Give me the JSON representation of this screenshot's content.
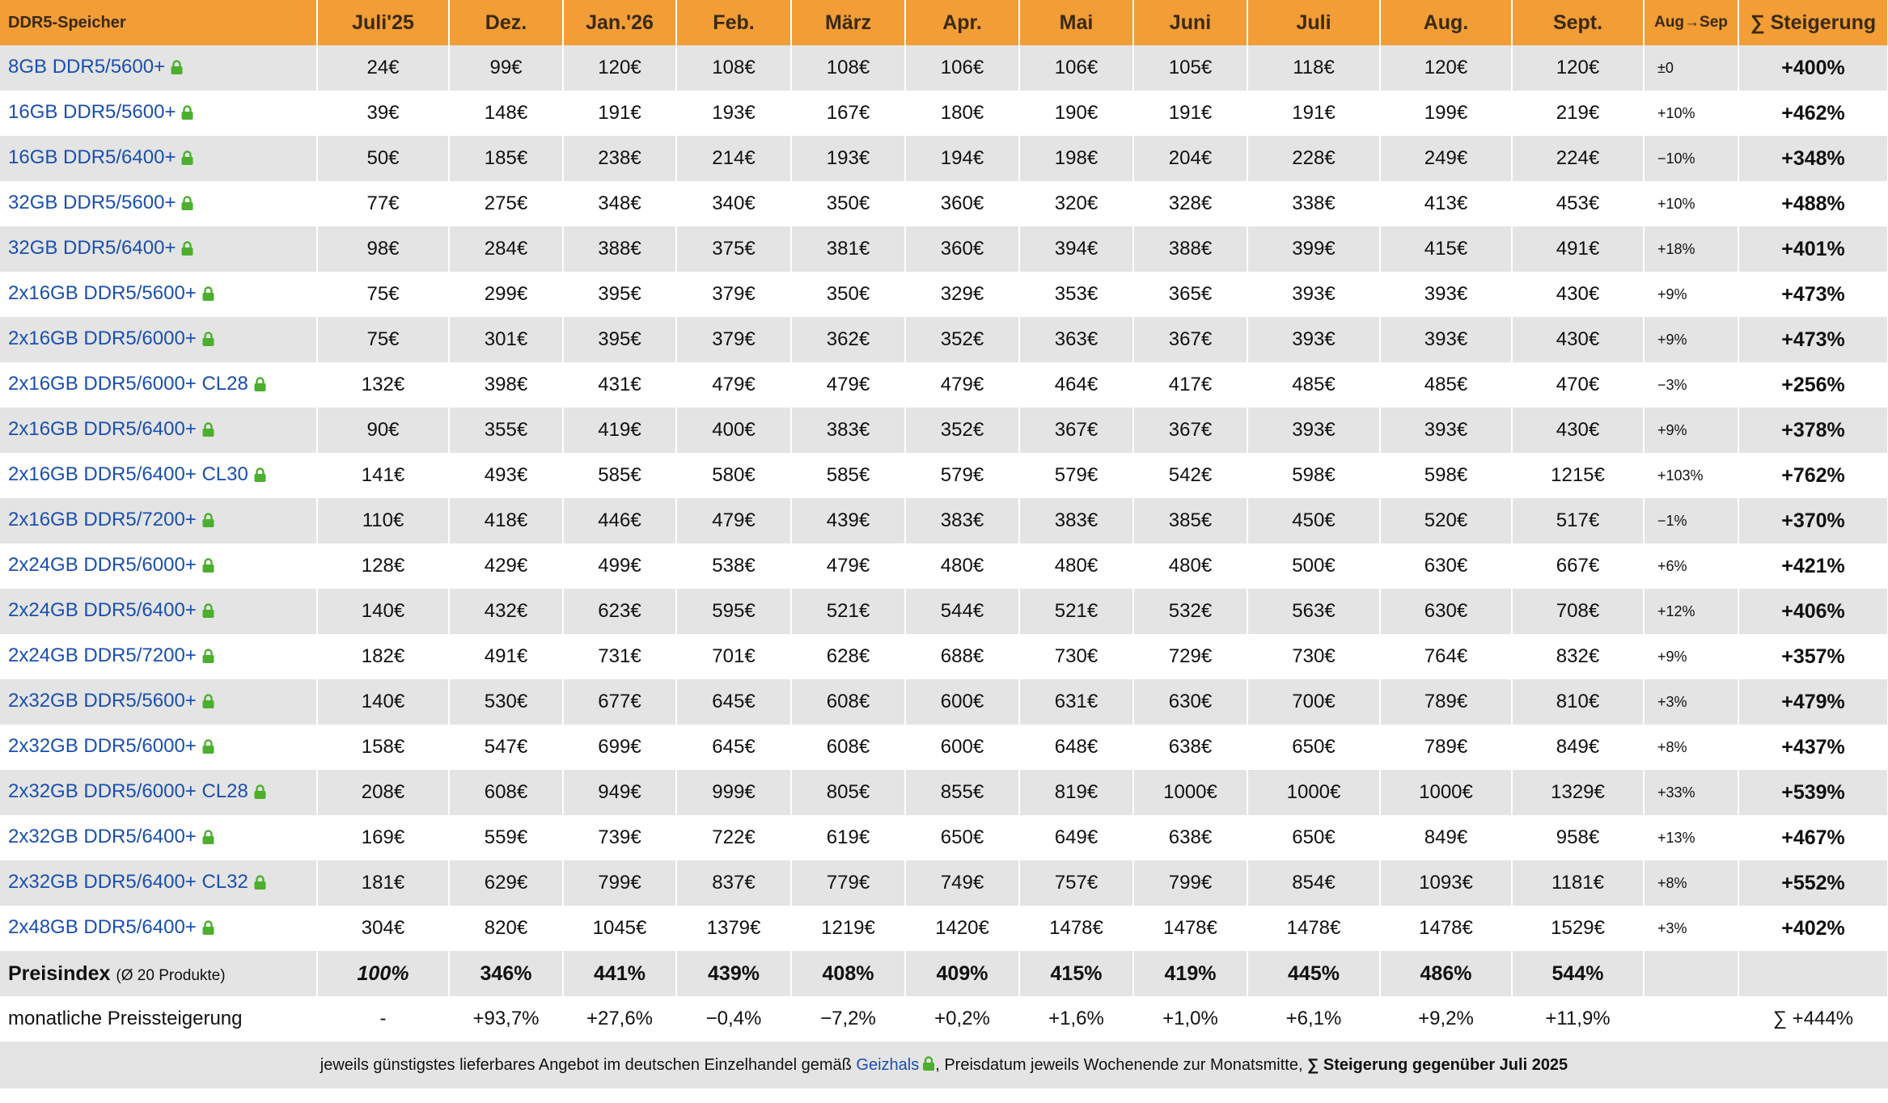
{
  "header": {
    "product": "DDR5-Speicher",
    "months": [
      "Juli'25",
      "Dez.",
      "Jan.'26",
      "Feb.",
      "März",
      "Apr.",
      "Mai",
      "Juni",
      "Juli",
      "Aug.",
      "Sept."
    ],
    "change": "Aug→Sep",
    "total": "∑ Steigerung"
  },
  "rows": [
    {
      "name": "8GB DDR5/5600+",
      "prices": [
        "24€",
        "99€",
        "120€",
        "108€",
        "108€",
        "106€",
        "106€",
        "105€",
        "118€",
        "120€",
        "120€"
      ],
      "change": "±0",
      "total": "+400%"
    },
    {
      "name": "16GB DDR5/5600+",
      "prices": [
        "39€",
        "148€",
        "191€",
        "193€",
        "167€",
        "180€",
        "190€",
        "191€",
        "191€",
        "199€",
        "219€"
      ],
      "change": "+10%",
      "total": "+462%"
    },
    {
      "name": "16GB DDR5/6400+",
      "prices": [
        "50€",
        "185€",
        "238€",
        "214€",
        "193€",
        "194€",
        "198€",
        "204€",
        "228€",
        "249€",
        "224€"
      ],
      "change": "−10%",
      "total": "+348%"
    },
    {
      "name": "32GB DDR5/5600+",
      "prices": [
        "77€",
        "275€",
        "348€",
        "340€",
        "350€",
        "360€",
        "320€",
        "328€",
        "338€",
        "413€",
        "453€"
      ],
      "change": "+10%",
      "total": "+488%"
    },
    {
      "name": "32GB DDR5/6400+",
      "prices": [
        "98€",
        "284€",
        "388€",
        "375€",
        "381€",
        "360€",
        "394€",
        "388€",
        "399€",
        "415€",
        "491€"
      ],
      "change": "+18%",
      "total": "+401%"
    },
    {
      "name": "2x16GB DDR5/5600+",
      "prices": [
        "75€",
        "299€",
        "395€",
        "379€",
        "350€",
        "329€",
        "353€",
        "365€",
        "393€",
        "393€",
        "430€"
      ],
      "change": "+9%",
      "total": "+473%"
    },
    {
      "name": "2x16GB DDR5/6000+",
      "prices": [
        "75€",
        "301€",
        "395€",
        "379€",
        "362€",
        "352€",
        "363€",
        "367€",
        "393€",
        "393€",
        "430€"
      ],
      "change": "+9%",
      "total": "+473%"
    },
    {
      "name": "2x16GB DDR5/6000+ CL28",
      "prices": [
        "132€",
        "398€",
        "431€",
        "479€",
        "479€",
        "479€",
        "464€",
        "417€",
        "485€",
        "485€",
        "470€"
      ],
      "change": "−3%",
      "total": "+256%"
    },
    {
      "name": "2x16GB DDR5/6400+",
      "prices": [
        "90€",
        "355€",
        "419€",
        "400€",
        "383€",
        "352€",
        "367€",
        "367€",
        "393€",
        "393€",
        "430€"
      ],
      "change": "+9%",
      "total": "+378%"
    },
    {
      "name": "2x16GB DDR5/6400+ CL30",
      "prices": [
        "141€",
        "493€",
        "585€",
        "580€",
        "585€",
        "579€",
        "579€",
        "542€",
        "598€",
        "598€",
        "1215€"
      ],
      "change": "+103%",
      "total": "+762%"
    },
    {
      "name": "2x16GB DDR5/7200+",
      "prices": [
        "110€",
        "418€",
        "446€",
        "479€",
        "439€",
        "383€",
        "383€",
        "385€",
        "450€",
        "520€",
        "517€"
      ],
      "change": "−1%",
      "total": "+370%"
    },
    {
      "name": "2x24GB DDR5/6000+",
      "prices": [
        "128€",
        "429€",
        "499€",
        "538€",
        "479€",
        "480€",
        "480€",
        "480€",
        "500€",
        "630€",
        "667€"
      ],
      "change": "+6%",
      "total": "+421%"
    },
    {
      "name": "2x24GB DDR5/6400+",
      "prices": [
        "140€",
        "432€",
        "623€",
        "595€",
        "521€",
        "544€",
        "521€",
        "532€",
        "563€",
        "630€",
        "708€"
      ],
      "change": "+12%",
      "total": "+406%"
    },
    {
      "name": "2x24GB DDR5/7200+",
      "prices": [
        "182€",
        "491€",
        "731€",
        "701€",
        "628€",
        "688€",
        "730€",
        "729€",
        "730€",
        "764€",
        "832€"
      ],
      "change": "+9%",
      "total": "+357%"
    },
    {
      "name": "2x32GB DDR5/5600+",
      "prices": [
        "140€",
        "530€",
        "677€",
        "645€",
        "608€",
        "600€",
        "631€",
        "630€",
        "700€",
        "789€",
        "810€"
      ],
      "change": "+3%",
      "total": "+479%"
    },
    {
      "name": "2x32GB DDR5/6000+",
      "prices": [
        "158€",
        "547€",
        "699€",
        "645€",
        "608€",
        "600€",
        "648€",
        "638€",
        "650€",
        "789€",
        "849€"
      ],
      "change": "+8%",
      "total": "+437%"
    },
    {
      "name": "2x32GB DDR5/6000+ CL28",
      "prices": [
        "208€",
        "608€",
        "949€",
        "999€",
        "805€",
        "855€",
        "819€",
        "1000€",
        "1000€",
        "1000€",
        "1329€"
      ],
      "change": "+33%",
      "total": "+539%"
    },
    {
      "name": "2x32GB DDR5/6400+",
      "prices": [
        "169€",
        "559€",
        "739€",
        "722€",
        "619€",
        "650€",
        "649€",
        "638€",
        "650€",
        "849€",
        "958€"
      ],
      "change": "+13%",
      "total": "+467%"
    },
    {
      "name": "2x32GB DDR5/6400+ CL32",
      "prices": [
        "181€",
        "629€",
        "799€",
        "837€",
        "779€",
        "749€",
        "757€",
        "799€",
        "854€",
        "1093€",
        "1181€"
      ],
      "change": "+8%",
      "total": "+552%"
    },
    {
      "name": "2x48GB DDR5/6400+",
      "prices": [
        "304€",
        "820€",
        "1045€",
        "1379€",
        "1219€",
        "1420€",
        "1478€",
        "1478€",
        "1478€",
        "1478€",
        "1529€"
      ],
      "change": "+3%",
      "total": "+402%"
    }
  ],
  "index": {
    "label": "Preisindex",
    "sub": "(Ø 20 Produkte)",
    "values": [
      "100%",
      "346%",
      "441%",
      "439%",
      "408%",
      "409%",
      "415%",
      "419%",
      "445%",
      "486%",
      "544%"
    ]
  },
  "monthly": {
    "label": "monatliche Preissteigerung",
    "values": [
      "-",
      "+93,7%",
      "+27,6%",
      "−0,4%",
      "−7,2%",
      "+0,2%",
      "+1,6%",
      "+1,0%",
      "+6,1%",
      "+9,2%",
      "+11,9%"
    ],
    "total": "∑ +444%"
  },
  "footer": {
    "part1": "jeweils günstigstes lieferbares Angebot im deutschen Einzelhandel gemäß ",
    "link": "Geizhals",
    "part2": ", Preisdatum jeweils Wochenende zur Monatsmitte, ",
    "bold": "∑ Steigerung gegenüber Juli 2025"
  },
  "colors": {
    "header": "#f29d35",
    "stripe": "#e4e4e4",
    "link": "#1a4fb0",
    "lock": "#4caf2e"
  },
  "icons": {
    "lock": "lock-icon"
  }
}
